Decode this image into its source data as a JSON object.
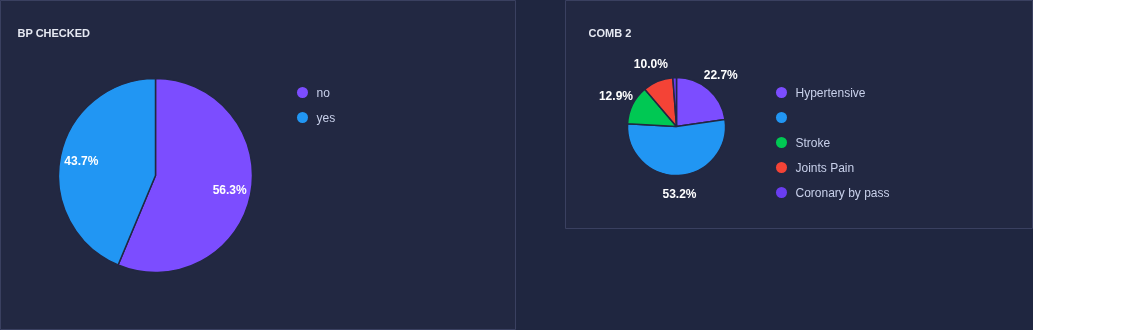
{
  "chart_data": [
    {
      "type": "pie",
      "title": "BP CHECKED",
      "categories": [
        "no",
        "yes"
      ],
      "values": [
        56.3,
        43.7
      ],
      "colors": [
        "#7c4dff",
        "#2196f3"
      ],
      "value_labels": [
        "56.3%",
        "43.7%"
      ],
      "legend": "right"
    },
    {
      "type": "pie",
      "title": "COMB 2",
      "categories": [
        "Hypertensive",
        null,
        "Stroke",
        "Joints Pain",
        "Coronary by pass"
      ],
      "values": [
        22.7,
        53.2,
        12.9,
        10.0,
        1.2
      ],
      "colors": [
        "#7c4dff",
        "#2196f3",
        "#00c853",
        "#f44336",
        "#6a3df0"
      ],
      "value_labels": [
        "22.7%",
        "53.2%",
        "12.9%",
        "10.0%",
        null
      ],
      "legend": "right"
    }
  ]
}
